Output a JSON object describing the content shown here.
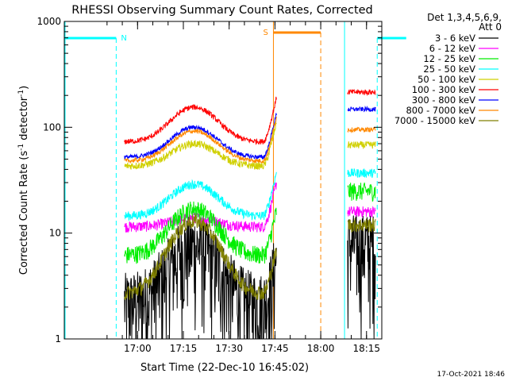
{
  "chart_data": {
    "type": "line",
    "title": "RHESSI Observing Summary Count Rates, Corrected",
    "xlabel": "Start Time (22-Dec-10 16:45:02)",
    "ylabel_main": "Corrected Count Rate (s",
    "ylabel_exp1": "-1",
    "ylabel_mid": " detector",
    "ylabel_exp2": "-1",
    "ylabel_end": ")",
    "yscale": "log",
    "ylim": [
      1,
      1000
    ],
    "xlim_minutes": [
      -9,
      95
    ],
    "x_ticks": [
      {
        "m": 15,
        "label": "17:00"
      },
      {
        "m": 30,
        "label": "17:15"
      },
      {
        "m": 45,
        "label": "17:30"
      },
      {
        "m": 60,
        "label": "17:45"
      },
      {
        "m": 75,
        "label": "18:00"
      },
      {
        "m": 90,
        "label": "18:15"
      }
    ],
    "y_ticks": [
      {
        "v": 1,
        "label": "1"
      },
      {
        "v": 10,
        "label": "10"
      },
      {
        "v": 100,
        "label": "100"
      },
      {
        "v": 1000,
        "label": "1000"
      }
    ],
    "legend_header": [
      "Det 1,3,4,5,6,9,",
      "Att 0"
    ],
    "legend_position": "right",
    "series": [
      {
        "name": "3 - 6 keV",
        "color": "#000000",
        "base": 2.2,
        "peak": 7.8,
        "post": 8,
        "noise": 0.45
      },
      {
        "name": "6 - 12 keV",
        "color": "#ff00ff",
        "base": 11.5,
        "peak": 14.0,
        "post": 16,
        "noise": 0.06
      },
      {
        "name": "12 - 25 keV",
        "color": "#00ee00",
        "base": 6.2,
        "peak": 17.0,
        "post": 25,
        "noise": 0.1
      },
      {
        "name": "25 - 50 keV",
        "color": "#00ffff",
        "base": 14.5,
        "peak": 29.0,
        "post": 37,
        "noise": 0.05
      },
      {
        "name": "50 - 100 keV",
        "color": "#d0d000",
        "base": 43,
        "peak": 70,
        "post": 68,
        "noise": 0.04
      },
      {
        "name": "100 - 300 keV",
        "color": "#ff0000",
        "base": 73,
        "peak": 155,
        "post": 215,
        "noise": 0.03
      },
      {
        "name": "300 - 800 keV",
        "color": "#0000ff",
        "base": 52,
        "peak": 100,
        "post": 148,
        "noise": 0.025
      },
      {
        "name": "800 - 7000 keV",
        "color": "#ff8800",
        "base": 48,
        "peak": 92,
        "post": 95,
        "noise": 0.025
      },
      {
        "name": "7000 - 15000 keV",
        "color": "#808000",
        "base": 2.7,
        "peak": 13,
        "post": 12,
        "noise": 0.08
      }
    ],
    "data_window_minutes": [
      10.7,
      60.5
    ],
    "post_window_minutes": [
      83.8,
      93.0
    ],
    "rise_window_minutes": [
      56,
      60.5
    ],
    "night_markers": [
      {
        "start": -9,
        "end": 8,
        "label": ""
      },
      {
        "start": 93.5,
        "end": 103,
        "label": ""
      }
    ],
    "night_label_N": "N",
    "saa_label_S": "S",
    "saa_segment_minutes": [
      59.5,
      75
    ]
  },
  "footer_date": "17-Oct-2021 18:46"
}
